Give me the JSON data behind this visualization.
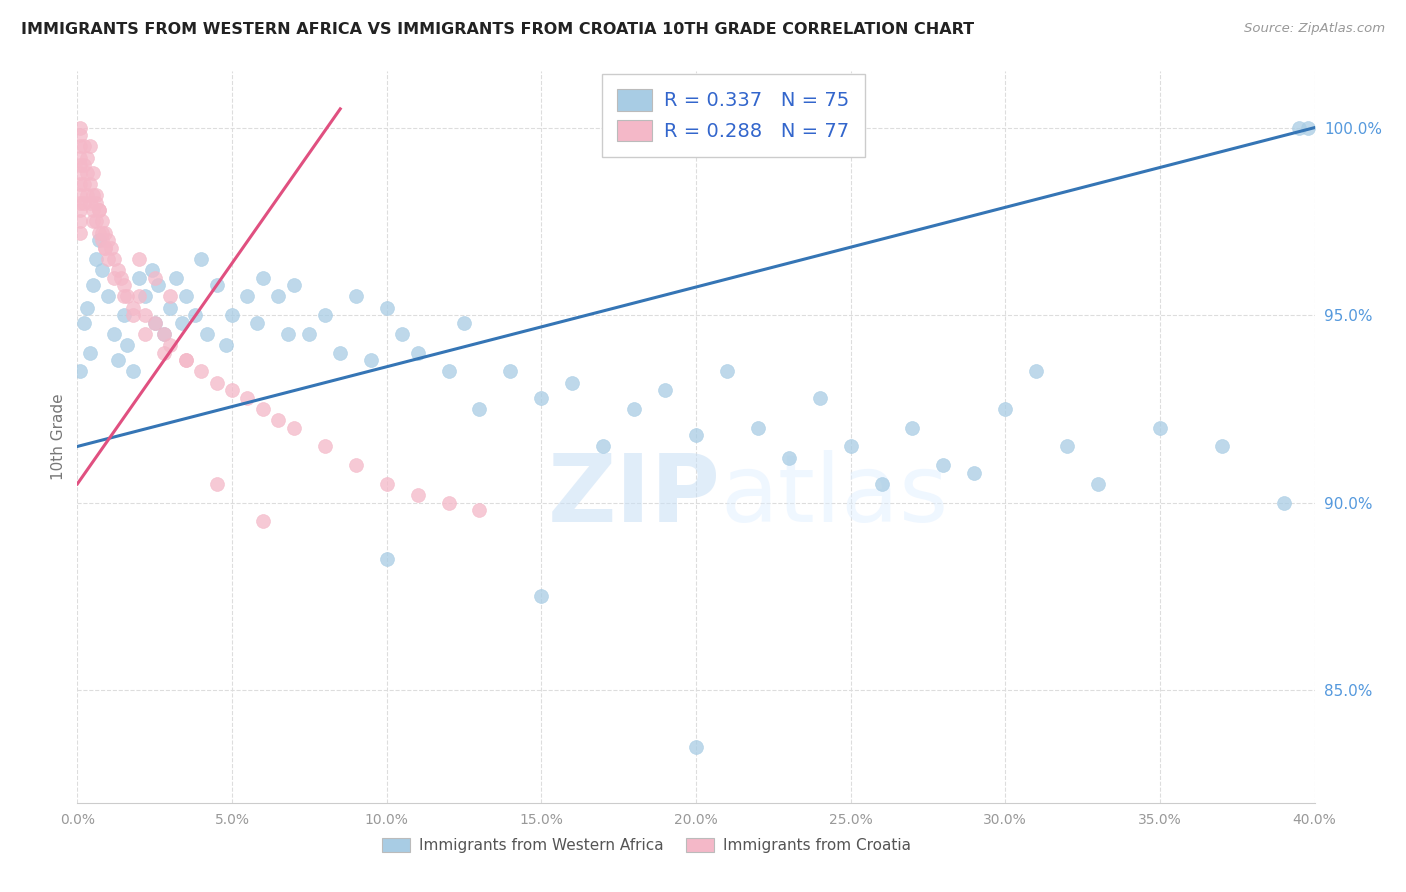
{
  "title": "IMMIGRANTS FROM WESTERN AFRICA VS IMMIGRANTS FROM CROATIA 10TH GRADE CORRELATION CHART",
  "source": "Source: ZipAtlas.com",
  "ylabel": "10th Grade",
  "legend_blue_r": "R = 0.337",
  "legend_blue_n": "N = 75",
  "legend_pink_r": "R = 0.288",
  "legend_pink_n": "N = 77",
  "legend_label_blue": "Immigrants from Western Africa",
  "legend_label_pink": "Immigrants from Croatia",
  "blue_color": "#a8cce4",
  "pink_color": "#f4b8c8",
  "blue_line_color": "#3575b5",
  "pink_line_color": "#e05080",
  "watermark_zip": "ZIP",
  "watermark_atlas": "atlas",
  "blue_x": [
    0.001,
    0.002,
    0.003,
    0.004,
    0.005,
    0.006,
    0.007,
    0.008,
    0.01,
    0.012,
    0.013,
    0.015,
    0.016,
    0.018,
    0.02,
    0.022,
    0.024,
    0.025,
    0.026,
    0.028,
    0.03,
    0.032,
    0.034,
    0.035,
    0.038,
    0.04,
    0.042,
    0.045,
    0.048,
    0.05,
    0.055,
    0.058,
    0.06,
    0.065,
    0.068,
    0.07,
    0.075,
    0.08,
    0.085,
    0.09,
    0.095,
    0.1,
    0.105,
    0.11,
    0.12,
    0.125,
    0.13,
    0.14,
    0.15,
    0.16,
    0.17,
    0.18,
    0.19,
    0.2,
    0.21,
    0.22,
    0.23,
    0.24,
    0.25,
    0.26,
    0.27,
    0.28,
    0.29,
    0.3,
    0.31,
    0.32,
    0.33,
    0.35,
    0.37,
    0.39,
    0.395,
    0.398,
    0.1,
    0.15,
    0.2
  ],
  "blue_y": [
    93.5,
    94.8,
    95.2,
    94.0,
    95.8,
    96.5,
    97.0,
    96.2,
    95.5,
    94.5,
    93.8,
    95.0,
    94.2,
    93.5,
    96.0,
    95.5,
    96.2,
    94.8,
    95.8,
    94.5,
    95.2,
    96.0,
    94.8,
    95.5,
    95.0,
    96.5,
    94.5,
    95.8,
    94.2,
    95.0,
    95.5,
    94.8,
    96.0,
    95.5,
    94.5,
    95.8,
    94.5,
    95.0,
    94.0,
    95.5,
    93.8,
    95.2,
    94.5,
    94.0,
    93.5,
    94.8,
    92.5,
    93.5,
    92.8,
    93.2,
    91.5,
    92.5,
    93.0,
    91.8,
    93.5,
    92.0,
    91.2,
    92.8,
    91.5,
    90.5,
    92.0,
    91.0,
    90.8,
    92.5,
    93.5,
    91.5,
    90.5,
    92.0,
    91.5,
    90.0,
    100.0,
    100.0,
    88.5,
    87.5,
    83.5
  ],
  "pink_x": [
    0.001,
    0.001,
    0.001,
    0.001,
    0.001,
    0.001,
    0.001,
    0.001,
    0.001,
    0.001,
    0.001,
    0.001,
    0.002,
    0.002,
    0.002,
    0.002,
    0.003,
    0.003,
    0.003,
    0.004,
    0.004,
    0.005,
    0.005,
    0.005,
    0.006,
    0.006,
    0.007,
    0.007,
    0.008,
    0.008,
    0.009,
    0.009,
    0.01,
    0.011,
    0.012,
    0.013,
    0.014,
    0.015,
    0.016,
    0.018,
    0.02,
    0.022,
    0.025,
    0.028,
    0.03,
    0.035,
    0.04,
    0.045,
    0.05,
    0.055,
    0.06,
    0.065,
    0.07,
    0.08,
    0.09,
    0.1,
    0.11,
    0.12,
    0.13,
    0.02,
    0.025,
    0.03,
    0.004,
    0.005,
    0.006,
    0.007,
    0.008,
    0.009,
    0.01,
    0.012,
    0.015,
    0.018,
    0.022,
    0.028,
    0.035,
    0.045,
    0.06
  ],
  "pink_y": [
    100.0,
    99.8,
    99.5,
    99.2,
    99.0,
    98.8,
    98.5,
    98.2,
    98.0,
    97.8,
    97.5,
    97.2,
    99.5,
    99.0,
    98.5,
    98.0,
    99.2,
    98.8,
    98.2,
    98.5,
    98.0,
    98.2,
    97.8,
    97.5,
    98.0,
    97.5,
    97.8,
    97.2,
    97.5,
    97.0,
    97.2,
    96.8,
    97.0,
    96.8,
    96.5,
    96.2,
    96.0,
    95.8,
    95.5,
    95.2,
    95.5,
    95.0,
    94.8,
    94.5,
    94.2,
    93.8,
    93.5,
    93.2,
    93.0,
    92.8,
    92.5,
    92.2,
    92.0,
    91.5,
    91.0,
    90.5,
    90.2,
    90.0,
    89.8,
    96.5,
    96.0,
    95.5,
    99.5,
    98.8,
    98.2,
    97.8,
    97.2,
    96.8,
    96.5,
    96.0,
    95.5,
    95.0,
    94.5,
    94.0,
    93.8,
    90.5,
    89.5
  ],
  "xlim": [
    0.0,
    0.4
  ],
  "ylim": [
    82.0,
    101.5
  ],
  "yticks": [
    85.0,
    90.0,
    95.0,
    100.0
  ],
  "ytick_labels": [
    "85.0%",
    "90.0%",
    "95.0%",
    "100.0%"
  ],
  "xtick_labels": [
    "0.0%",
    "5.0%",
    "10.0%",
    "15.0%",
    "20.0%",
    "25.0%",
    "30.0%",
    "35.0%",
    "40.0%"
  ]
}
